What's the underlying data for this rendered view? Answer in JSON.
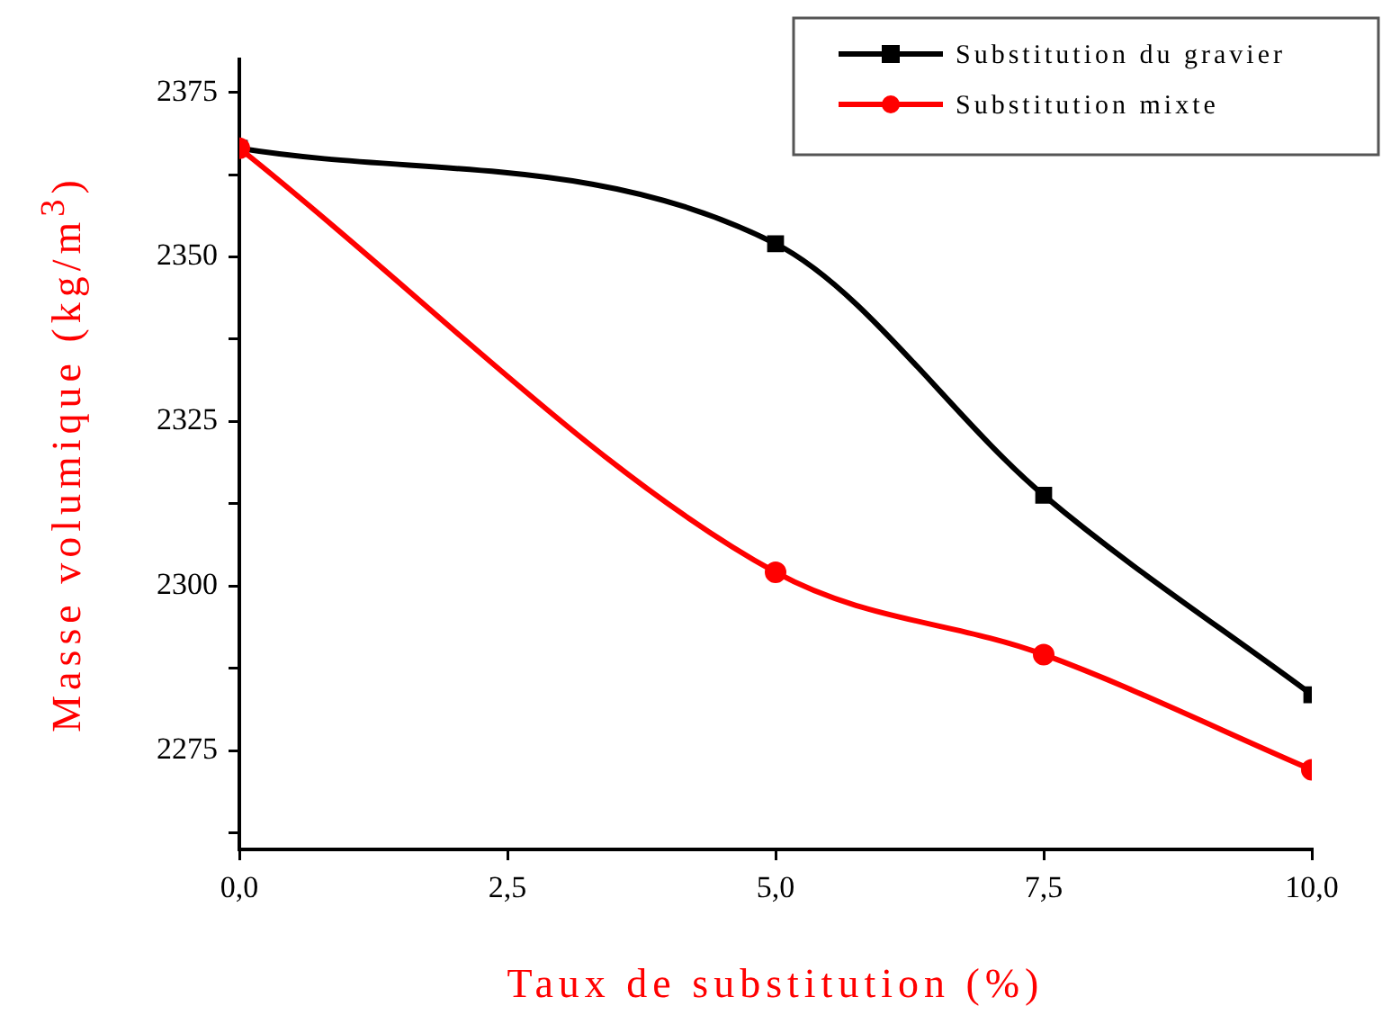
{
  "chart_data": {
    "type": "line",
    "xlabel": "Taux de substitution (%)",
    "ylabel": "Masse volumique (kg/m$^{3}$)",
    "x": [
      0,
      5,
      7.5,
      10
    ],
    "series": [
      {
        "name": "Substitution du gravier",
        "color": "#000000",
        "marker": "square",
        "values": [
          2366.5,
          2352,
          2313.8,
          2283.5
        ]
      },
      {
        "name": "Substitution mixte",
        "color": "#ff0000",
        "marker": "circle",
        "values": [
          2366.5,
          2302.1,
          2289.6,
          2272.1
        ]
      }
    ],
    "xlim": [
      0,
      10
    ],
    "xticks": [
      {
        "value": 0,
        "label": "0,0"
      },
      {
        "value": 2.5,
        "label": "2,5"
      },
      {
        "value": 5,
        "label": "5,0"
      },
      {
        "value": 7.5,
        "label": "7,5"
      },
      {
        "value": 10,
        "label": "10,0"
      }
    ],
    "ylim": [
      2260,
      2380
    ],
    "yticks": [
      {
        "value": 2262.5,
        "label": null
      },
      2275,
      {
        "value": 2287.5,
        "label": null
      },
      2300,
      {
        "value": 2312.5,
        "label": null
      },
      2325,
      {
        "value": 2337.5,
        "label": null
      },
      2350,
      {
        "value": 2362.5,
        "label": null
      },
      2375
    ],
    "grid": false,
    "legend": "top right",
    "line_style": "solid"
  }
}
